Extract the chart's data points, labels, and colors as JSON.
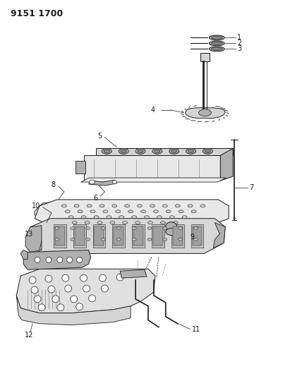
{
  "title": "9151 1700",
  "background_color": "#ffffff",
  "line_color": "#1a1a1a",
  "fig_width": 4.11,
  "fig_height": 5.33,
  "dpi": 100,
  "gray_light": "#d4d4d4",
  "gray_mid": "#b0b0b0",
  "gray_dark": "#888888",
  "gray_fill": "#c8c8c8",
  "white": "#ffffff"
}
